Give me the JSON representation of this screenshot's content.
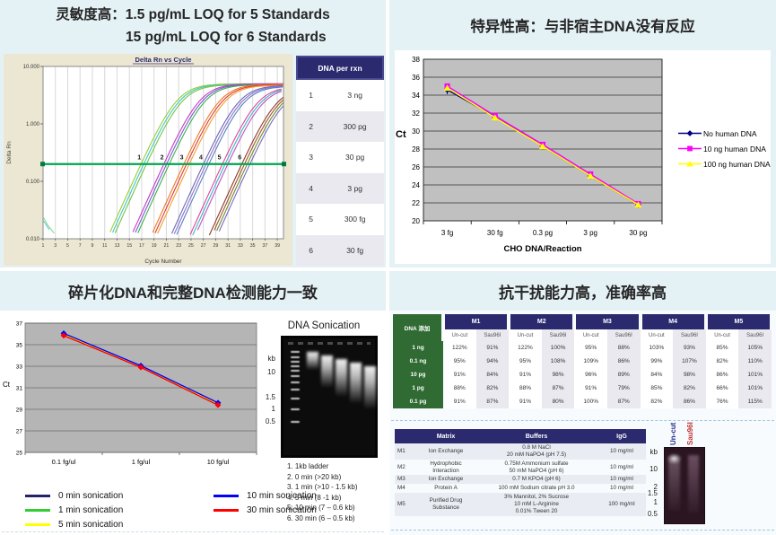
{
  "top_left": {
    "title_line1": "灵敏度高：1.5 pg/mL LOQ for 5 Standards",
    "title_line2": "15 pg/mL LOQ for 6 Standards",
    "table": {
      "header": "DNA per rxn",
      "rows": [
        {
          "num": "1",
          "amount": "3 ng"
        },
        {
          "num": "2",
          "amount": "300 pg"
        },
        {
          "num": "3",
          "amount": "30 pg"
        },
        {
          "num": "4",
          "amount": "3 pg"
        },
        {
          "num": "5",
          "amount": "300 fg"
        },
        {
          "num": "6",
          "amount": "30 fg"
        }
      ]
    }
  },
  "top_right": {
    "title": "特异性高：与非宿主DNA没有反应"
  },
  "bottom_left": {
    "title": "碎片化DNA和完整DNA检测能力一致",
    "gel": {
      "title": "DNA Sonication",
      "kb_labels": [
        "kb",
        "10",
        "1.5",
        "1",
        "0.5"
      ],
      "caption": [
        "1. 1kb ladder",
        "2. 0 min (>20 kb)",
        "3. 1 min (>10 - 1.5 kb)",
        "4. 5 min (8 -1 kb)",
        "5. 10 min (7 – 0.6 kb)",
        "6. 30 min (6 – 0.5 kb)"
      ]
    }
  },
  "bottom_right": {
    "title": "抗干扰能力高，准确率高",
    "table1": {
      "corner": "DNA 添加",
      "groups": [
        "M1",
        "M2",
        "M3",
        "M4",
        "M5"
      ],
      "subheaders": [
        "Un-cut",
        "Sau96I"
      ],
      "rows": [
        {
          "label": "1 ng",
          "values": [
            "122%",
            "91%",
            "122%",
            "100%",
            "95%",
            "88%",
            "103%",
            "93%",
            "85%",
            "105%"
          ]
        },
        {
          "label": "0.1 ng",
          "values": [
            "95%",
            "94%",
            "95%",
            "108%",
            "109%",
            "86%",
            "99%",
            "107%",
            "82%",
            "110%"
          ]
        },
        {
          "label": "10 pg",
          "values": [
            "91%",
            "84%",
            "91%",
            "98%",
            "96%",
            "89%",
            "84%",
            "98%",
            "86%",
            "101%"
          ]
        },
        {
          "label": "1 pg",
          "values": [
            "88%",
            "82%",
            "88%",
            "87%",
            "91%",
            "79%",
            "85%",
            "82%",
            "66%",
            "101%"
          ]
        },
        {
          "label": "0.1 pg",
          "values": [
            "91%",
            "87%",
            "91%",
            "80%",
            "100%",
            "87%",
            "82%",
            "86%",
            "76%",
            "115%"
          ]
        }
      ]
    },
    "table2": {
      "headers": [
        "",
        "Matrix",
        "Buffers",
        "IgG"
      ],
      "rows": [
        {
          "id": "M1",
          "matrix": "Ion Exchange",
          "buffers": "0.8 M NaCl\n20 mM NaPO4 (pH 7.5)",
          "igg": "10 mg/ml"
        },
        {
          "id": "M2",
          "matrix": "Hydrophobic\nInteraction",
          "buffers": "0.75M Ammonium sulfate\n50 mM NaPO4 (pH 6)",
          "igg": "10 mg/ml"
        },
        {
          "id": "M3",
          "matrix": "Ion Exchange",
          "buffers": "0.7 M KPO4 (pH 6)",
          "igg": "10 mg/ml"
        },
        {
          "id": "M4",
          "matrix": "Protein A",
          "buffers": "100 mM Sodium citrate pH 3.0",
          "igg": "10 mg/ml"
        },
        {
          "id": "M5",
          "matrix": "Purified Drug\nSubstance",
          "buffers": "3% Mannitol, 2% Sucrose\n10 mM L-Arginine\n0.01% Tween 20",
          "igg": "100 mg/ml"
        }
      ]
    },
    "gel": {
      "lane_labels": [
        "Un-cut",
        "Sau96I"
      ],
      "kb_labels": [
        "kb",
        "10",
        "2",
        "1.5",
        "1",
        "0.5"
      ]
    }
  },
  "chart_data": [
    {
      "id": "amplification",
      "type": "line",
      "title": "Delta Rn vs Cycle",
      "xlabel": "Cycle Number",
      "ylabel": "Delta Rn",
      "y_scale": "log",
      "ylim": [
        0.01,
        10
      ],
      "y_tick_labels": [
        "10.000",
        "1.000",
        "0.100",
        "0.010"
      ],
      "x_ticks": [
        1,
        3,
        5,
        7,
        9,
        11,
        13,
        15,
        17,
        19,
        21,
        23,
        25,
        27,
        29,
        31,
        33,
        35,
        37,
        39
      ],
      "xlim": [
        1,
        40
      ],
      "threshold": 0.2,
      "threshold_color": "#00a550",
      "groups": [
        {
          "label": "1",
          "dna_per_rxn": "3 ng",
          "threshold_cycle": 17.3,
          "plateau": 5.0,
          "colors": [
            "#9acd32",
            "#3cc8c8",
            "#7ac143"
          ]
        },
        {
          "label": "2",
          "dna_per_rxn": "300 pg",
          "threshold_cycle": 21.0,
          "plateau": 5.0,
          "colors": [
            "#c23cc2",
            "#7a5ad2",
            "#3cb24a"
          ]
        },
        {
          "label": "3",
          "dna_per_rxn": "30 pg",
          "threshold_cycle": 24.2,
          "plateau": 4.9,
          "colors": [
            "#f07820",
            "#e03838",
            "#f0a030"
          ]
        },
        {
          "label": "4",
          "dna_per_rxn": "3 pg",
          "threshold_cycle": 27.3,
          "plateau": 4.7,
          "colors": [
            "#6868b8",
            "#8f70c8",
            "#5880c0"
          ]
        },
        {
          "label": "5",
          "dna_per_rxn": "300 fg",
          "threshold_cycle": 30.3,
          "plateau": 4.5,
          "colors": [
            "#e040a0",
            "#38b8b8",
            "#c050c8"
          ]
        },
        {
          "label": "6",
          "dna_per_rxn": "30 fg",
          "threshold_cycle": 33.6,
          "plateau": 4.4,
          "colors": [
            "#8b3a2a",
            "#a0522d",
            "#6b8e23",
            "#7a68c8"
          ]
        }
      ]
    },
    {
      "id": "specificity",
      "type": "line",
      "categories": [
        "3 fg",
        "30 fg",
        "0.3 pg",
        "3 pg",
        "30 pg"
      ],
      "xlabel": "CHO DNA/Reaction",
      "ylabel": "Ct",
      "ylim": [
        20,
        38
      ],
      "y_step": 2,
      "legend_position": "right",
      "series": [
        {
          "name": "No human DNA",
          "color": "#000080",
          "marker": "diamond",
          "values": [
            34.6,
            31.6,
            28.3,
            25.0,
            21.8
          ]
        },
        {
          "name": "10 ng human DNA",
          "color": "#ff00ff",
          "marker": "square",
          "values": [
            35.0,
            31.7,
            28.5,
            25.2,
            21.9
          ]
        },
        {
          "name": "100 ng human DNA",
          "color": "#ffff00",
          "marker": "triangle",
          "values": [
            34.8,
            31.5,
            28.3,
            25.0,
            21.8
          ]
        }
      ]
    },
    {
      "id": "sonication",
      "type": "line",
      "categories": [
        "0.1 fg/ul",
        "1 fg/ul",
        "10 fg/ul"
      ],
      "xlabel": "",
      "ylabel": "Ct",
      "ylim": [
        25,
        37
      ],
      "y_step": 2,
      "legend_position": "below",
      "series": [
        {
          "name": "0 min sonication",
          "color": "#232366",
          "marker": "none",
          "values": [
            35.95,
            33.0,
            29.5
          ]
        },
        {
          "name": "1 min sonication",
          "color": "#33cc33",
          "marker": "none",
          "values": [
            35.95,
            33.0,
            29.5
          ]
        },
        {
          "name": "5 min sonication",
          "color": "#ffff00",
          "marker": "none",
          "values": [
            35.95,
            33.0,
            29.5
          ]
        },
        {
          "name": "10 min sonication",
          "color": "#0000ff",
          "marker": "diamond",
          "values": [
            36.05,
            33.05,
            29.6
          ]
        },
        {
          "name": "30 min sonication",
          "color": "#ff0000",
          "marker": "diamond",
          "values": [
            35.85,
            32.9,
            29.4
          ]
        }
      ]
    }
  ]
}
